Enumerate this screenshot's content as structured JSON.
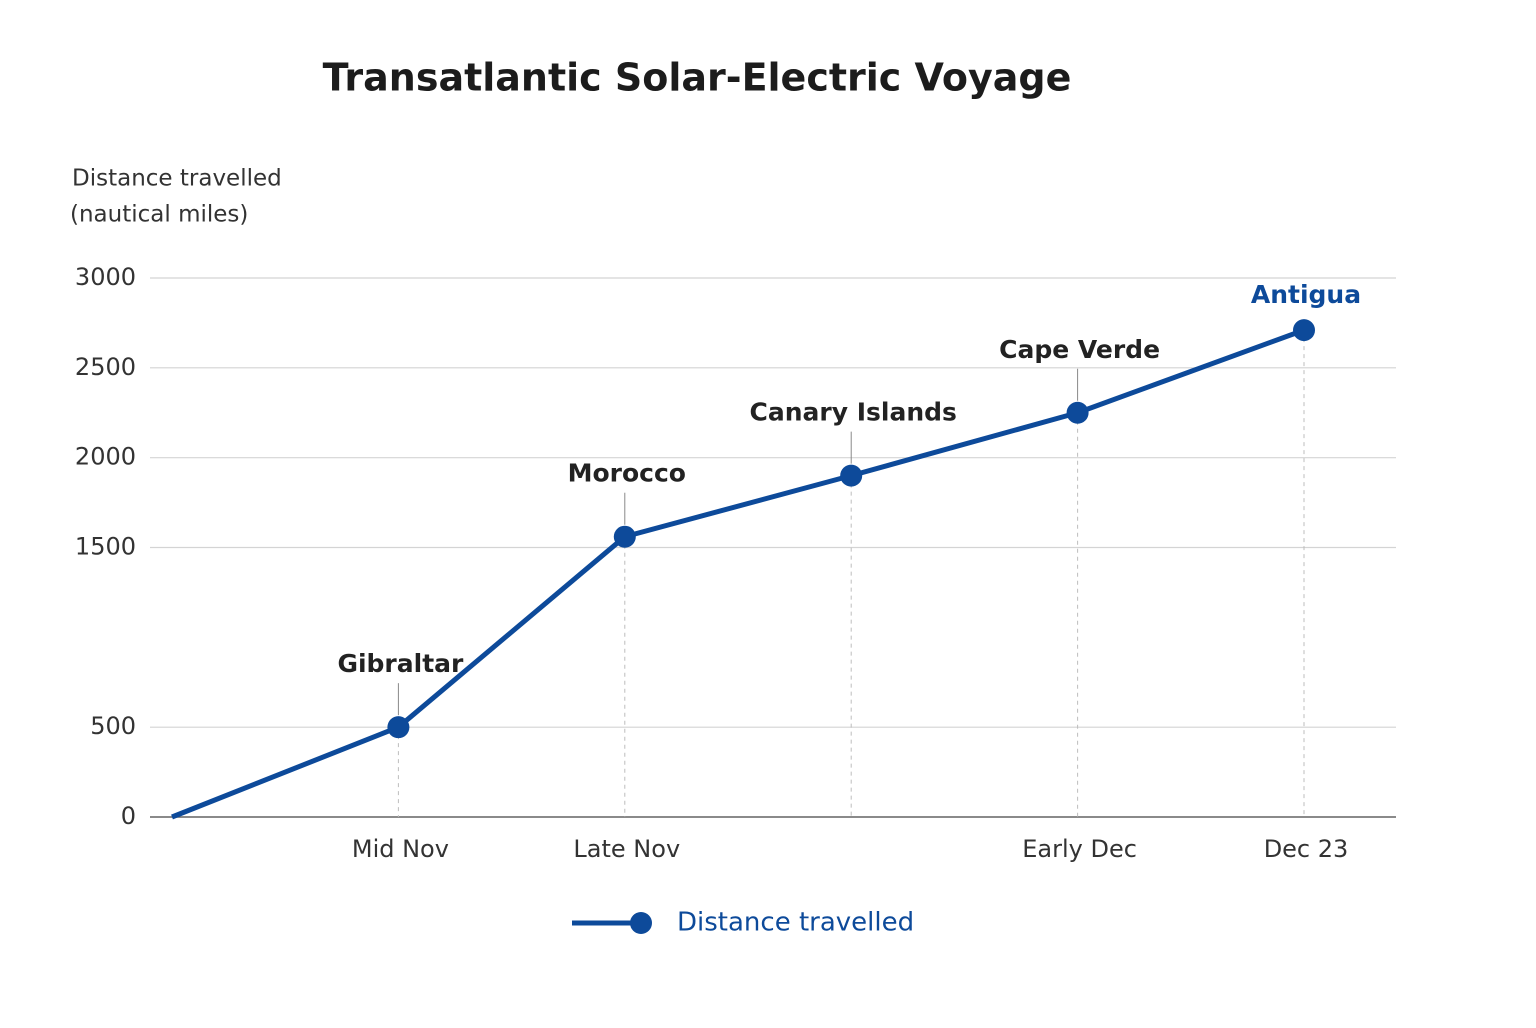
{
  "chart_data": {
    "type": "line",
    "title": "Transatlantic Solar-Electric Voyage",
    "ylabel": [
      "Distance travelled",
      "(nautical miles)"
    ],
    "categories": [
      null,
      "Mid Nov",
      "Late Nov",
      null,
      "Early Dec",
      "Dec 23"
    ],
    "series": [
      {
        "name": "Distance travelled",
        "color": "#0d4a9a",
        "values": [
          0,
          500,
          1560,
          1900,
          2250,
          2710
        ]
      }
    ],
    "annotations": [
      {
        "index": 1,
        "text": "Gibraltar",
        "color": "#222222"
      },
      {
        "index": 2,
        "text": "Morocco",
        "color": "#222222"
      },
      {
        "index": 3,
        "text": "Canary Islands",
        "color": "#222222"
      },
      {
        "index": 4,
        "text": "Cape Verde",
        "color": "#222222"
      },
      {
        "index": 5,
        "text": "Antigua",
        "color": "#0d4a9a"
      }
    ],
    "ylim": [
      0,
      3000
    ],
    "yticks": [
      0,
      500,
      1500,
      2000,
      2500,
      3000
    ],
    "grid": true,
    "legend": "bottom"
  }
}
